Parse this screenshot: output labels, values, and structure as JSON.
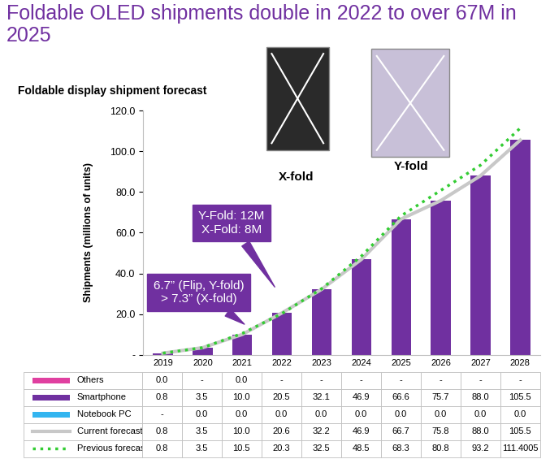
{
  "chart_data": {
    "type": "bar",
    "title": "Foldable OLED shipments double in 2022 to over 67M in 2025",
    "subtitle": "Foldable display shipment forecast",
    "y_label": "Shipments (millions of units)",
    "annotations": [
      "Y-Fold: 12M\nX-Fold: 8M",
      "6.7” (Flip, Y-fold)\n> 7.3” (X-fold)",
      "X-fold",
      "Y-fold"
    ],
    "categories": [
      "2019",
      "2020",
      "2021",
      "2022",
      "2023",
      "2024",
      "2025",
      "2026",
      "2027",
      "2028"
    ],
    "stacked": true,
    "ylim": [
      0,
      120
    ],
    "yticks": [
      {
        "value": 0,
        "label": "-"
      },
      {
        "value": 20,
        "label": "20.0"
      },
      {
        "value": 40,
        "label": "40.0"
      },
      {
        "value": 60,
        "label": "60.0"
      },
      {
        "value": 80,
        "label": "80.0"
      },
      {
        "value": 100,
        "label": "100.0"
      },
      {
        "value": 120,
        "label": "120.0"
      }
    ],
    "series": [
      {
        "name": "Others",
        "type": "bar",
        "color": "#E040A0",
        "values": [
          0.0,
          null,
          0.0,
          null,
          null,
          null,
          null,
          null,
          null,
          null
        ],
        "value_labels": [
          "0.0",
          "-",
          "0.0",
          "-",
          "-",
          "-",
          "-",
          "-",
          "-",
          "-"
        ]
      },
      {
        "name": "Smartphone",
        "type": "bar",
        "color": "#7030A0",
        "values": [
          0.8,
          3.5,
          10.0,
          20.5,
          32.1,
          46.9,
          66.6,
          75.7,
          88.0,
          105.5
        ],
        "value_labels": [
          "0.8",
          "3.5",
          "10.0",
          "20.5",
          "32.1",
          "46.9",
          "66.6",
          "75.7",
          "88.0",
          "105.5"
        ]
      },
      {
        "name": "Notebook PC",
        "type": "bar",
        "color": "#33B5F0",
        "values": [
          null,
          0.0,
          0.0,
          0.0,
          0.0,
          0.0,
          0.0,
          0.0,
          0.0,
          0.0
        ],
        "value_labels": [
          "-",
          "0.0",
          "0.0",
          "0.0",
          "0.0",
          "0.0",
          "0.0",
          "0.0",
          "0.0",
          "0.0"
        ]
      },
      {
        "name": "Current forecast",
        "type": "line",
        "line_style": "solid",
        "color": "#C8C8C8",
        "values": [
          0.8,
          3.5,
          10.0,
          20.6,
          32.2,
          46.9,
          66.7,
          75.8,
          88.0,
          105.5
        ],
        "value_labels": [
          "0.8",
          "3.5",
          "10.0",
          "20.6",
          "32.2",
          "46.9",
          "66.7",
          "75.8",
          "88.0",
          "105.5"
        ]
      },
      {
        "name": "Previous forecast",
        "type": "line",
        "line_style": "dotted",
        "color": "#33CC33",
        "values": [
          0.8,
          3.5,
          10.5,
          20.3,
          32.5,
          48.5,
          68.3,
          80.8,
          93.2,
          111.4005
        ],
        "value_labels": [
          "0.8",
          "3.5",
          "10.5",
          "20.3",
          "32.5",
          "48.5",
          "68.3",
          "80.8",
          "93.2",
          "111.4005"
        ]
      }
    ]
  }
}
